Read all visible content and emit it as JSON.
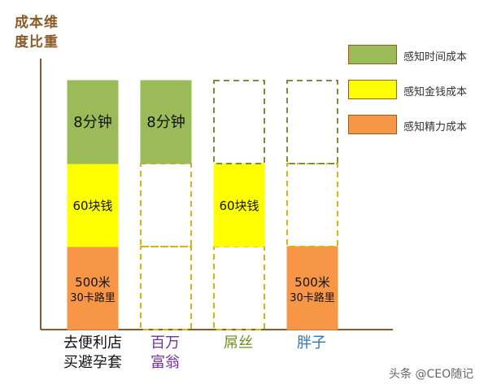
{
  "chart_data": {
    "type": "bar",
    "stacked": true,
    "ylabel": "成本维\n度比重",
    "categories": [
      {
        "label": "去便利店\n买避孕套",
        "color": "#111111"
      },
      {
        "label": "百万\n富翁",
        "color": "#7030a0"
      },
      {
        "label": "屌丝",
        "color": "#6b8e23"
      },
      {
        "label": "胖子",
        "color": "#2e75b6"
      }
    ],
    "series": [
      {
        "name": "感知精力成本",
        "color": "#f79646",
        "filled": [
          true,
          false,
          false,
          true
        ],
        "labels": [
          "500米\n30卡路里",
          "",
          "",
          "500米\n30卡路里"
        ]
      },
      {
        "name": "感知金钱成本",
        "color": "#ffff00",
        "filled": [
          true,
          false,
          true,
          false
        ],
        "labels": [
          "60块钱",
          "",
          "60块钱",
          ""
        ]
      },
      {
        "name": "感知时间成本",
        "color": "#9bbb59",
        "filled": [
          true,
          true,
          false,
          false
        ],
        "labels": [
          "8分钟",
          "8分钟",
          "",
          ""
        ]
      }
    ],
    "legend_position": "top-right",
    "grid": false
  },
  "watermark": "头条 @CEO随记"
}
